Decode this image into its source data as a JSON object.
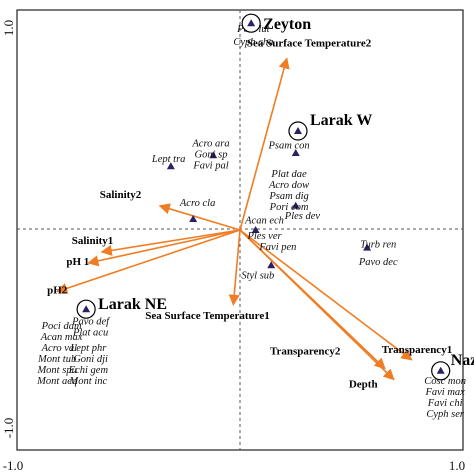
{
  "chart_data": {
    "type": "scatter",
    "title": "",
    "xlabel": "",
    "ylabel": "",
    "xlim": [
      -1.0,
      1.0
    ],
    "ylim": [
      -1.0,
      1.0
    ],
    "x_tick_labels": [
      "-1.0",
      "1.0"
    ],
    "y_tick_labels": [
      "-1.0",
      "1.0"
    ],
    "grid": false,
    "legend": "none",
    "colors": {
      "vectors": "#f07d23",
      "species": "#2b2160",
      "axes": "#222222"
    },
    "vectors": [
      {
        "label": "Sea Surface Temperature2",
        "x": 0.21,
        "y": 0.78
      },
      {
        "label": "Salinity2",
        "x": -0.36,
        "y": 0.11
      },
      {
        "label": "Salinity1",
        "x": -0.62,
        "y": -0.1
      },
      {
        "label": "pH 1",
        "x": -0.68,
        "y": -0.15
      },
      {
        "label": "pH2",
        "x": -0.82,
        "y": -0.28
      },
      {
        "label": "Sea Surface Temperature1",
        "x": -0.03,
        "y": -0.34
      },
      {
        "label": "Transparency1",
        "x": 0.77,
        "y": -0.59
      },
      {
        "label": "Transparency2",
        "x": 0.65,
        "y": -0.63
      },
      {
        "label": "Depth",
        "x": 0.69,
        "y": -0.68
      }
    ],
    "sites": [
      {
        "label": "Zeyton",
        "x": 0.05,
        "y": 0.94
      },
      {
        "label": "Larak W",
        "x": 0.26,
        "y": 0.45
      },
      {
        "label": "Larak NE",
        "x": -0.69,
        "y": -0.36
      },
      {
        "label": "Naz",
        "x": 0.9,
        "y": -0.64
      }
    ],
    "species": [
      {
        "label": "Pori lut",
        "x": 0.06,
        "y": 0.9
      },
      {
        "label": "Cyph cha",
        "x": 0.06,
        "y": 0.84
      },
      {
        "label": "Acro ara",
        "x": -0.13,
        "y": 0.38
      },
      {
        "label": "Goni sp",
        "x": -0.13,
        "y": 0.33
      },
      {
        "label": "Lept tra",
        "x": -0.32,
        "y": 0.31
      },
      {
        "label": "Favi pal",
        "x": -0.13,
        "y": 0.28
      },
      {
        "label": "Psam con",
        "x": 0.22,
        "y": 0.37
      },
      {
        "label": "Plat dae",
        "x": 0.22,
        "y": 0.24
      },
      {
        "label": "Acro dow",
        "x": 0.22,
        "y": 0.19
      },
      {
        "label": "Psam dig",
        "x": 0.22,
        "y": 0.14
      },
      {
        "label": "Pori com",
        "x": 0.22,
        "y": 0.09
      },
      {
        "label": "Acro cla",
        "x": -0.19,
        "y": 0.11
      },
      {
        "label": "Ples dev",
        "x": 0.28,
        "y": 0.05
      },
      {
        "label": "Acan ech",
        "x": 0.11,
        "y": 0.03
      },
      {
        "label": "Ples ver",
        "x": 0.11,
        "y": -0.04
      },
      {
        "label": "Favi pen",
        "x": 0.17,
        "y": -0.09
      },
      {
        "label": "Turb ren",
        "x": 0.62,
        "y": -0.08
      },
      {
        "label": "Pavo dec",
        "x": 0.62,
        "y": -0.16
      },
      {
        "label": "Styl sub",
        "x": 0.08,
        "y": -0.22
      },
      {
        "label": "Pavo def",
        "x": -0.67,
        "y": -0.43
      },
      {
        "label": "Poci dam",
        "x": -0.8,
        "y": -0.45
      },
      {
        "label": "Plat acu",
        "x": -0.67,
        "y": -0.48
      },
      {
        "label": "Acan max",
        "x": -0.8,
        "y": -0.5
      },
      {
        "label": "Lept phr",
        "x": -0.68,
        "y": -0.55
      },
      {
        "label": "Acro val",
        "x": -0.81,
        "y": -0.55
      },
      {
        "label": "Mont tub",
        "x": -0.82,
        "y": -0.6
      },
      {
        "label": "Goni dji",
        "x": -0.67,
        "y": -0.6
      },
      {
        "label": "Mont spu",
        "x": -0.82,
        "y": -0.65
      },
      {
        "label": "Echi gem",
        "x": -0.68,
        "y": -0.65
      },
      {
        "label": "Mont aeq",
        "x": -0.82,
        "y": -0.7
      },
      {
        "label": "Mont inc",
        "x": -0.68,
        "y": -0.7
      },
      {
        "label": "Cosc mon",
        "x": 0.92,
        "y": -0.7
      },
      {
        "label": "Favi max",
        "x": 0.92,
        "y": -0.75
      },
      {
        "label": "Favi chi",
        "x": 0.92,
        "y": -0.8
      },
      {
        "label": "Cyph ser",
        "x": 0.92,
        "y": -0.85
      }
    ],
    "species_markers": [
      {
        "x": -0.31,
        "y": 0.29
      },
      {
        "x": -0.12,
        "y": 0.34
      },
      {
        "x": 0.25,
        "y": 0.11
      },
      {
        "x": -0.21,
        "y": 0.05
      },
      {
        "x": 0.07,
        "y": 0.0
      },
      {
        "x": 0.14,
        "y": -0.16
      },
      {
        "x": 0.57,
        "y": -0.08
      },
      {
        "x": 0.25,
        "y": 0.35
      },
      {
        "x": 0.05,
        "y": 0.92
      },
      {
        "x": -0.69,
        "y": -0.36
      },
      {
        "x": 0.89,
        "y": -0.63
      }
    ]
  }
}
